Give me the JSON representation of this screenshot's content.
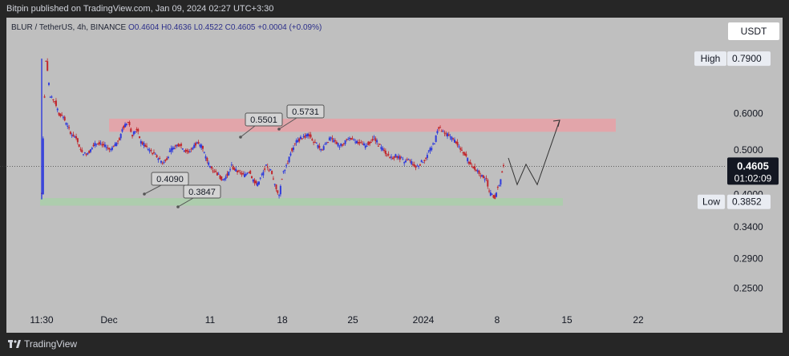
{
  "header": {
    "published": "Bitpin published on TradingView.com, Jan 09, 2024 02:27 UTC+3:30"
  },
  "legend": {
    "symbol": "BLUR / TetherUS, 4h, BINANCE",
    "open": "O0.4604",
    "high": "H0.4636",
    "low": "L0.4522",
    "close": "C0.4605",
    "change": "+0.0004 (+0.09%)"
  },
  "currency": "USDT",
  "footer": {
    "brand": "TradingView"
  },
  "colors": {
    "up": "#2f3bdc",
    "down": "#c1272d",
    "resistance": "#e8a0a6",
    "support": "#a9cfa9",
    "background": "#bfbfbf"
  },
  "chart_data": {
    "type": "candlestick",
    "symbol": "BLUR/USDT",
    "timeframe": "4h",
    "x_ticks": [
      "11:30",
      "Dec",
      "11",
      "18",
      "25",
      "2024",
      "8",
      "15",
      "22"
    ],
    "y_ticks": [
      0.25,
      0.29,
      0.34,
      0.4,
      0.5,
      0.6
    ],
    "ylim": [
      0.23,
      0.86
    ],
    "y_scale": "log",
    "current_price": {
      "value": "0.4605",
      "countdown": "01:02:09"
    },
    "high_marker": {
      "label": "High",
      "value": "0.7900"
    },
    "low_marker": {
      "label": "Low",
      "value": "0.3852"
    },
    "resistance_zone": [
      0.5501,
      0.5731
    ],
    "support_zone": [
      0.3847,
      0.409
    ],
    "callouts": [
      {
        "text": "0.5501",
        "price": 0.5501
      },
      {
        "text": "0.5731",
        "price": 0.5731
      },
      {
        "text": "0.4090",
        "price": 0.409
      },
      {
        "text": "0.3847",
        "price": 0.3847
      }
    ],
    "price_path": [
      0.4,
      0.78,
      0.65,
      0.64,
      0.6,
      0.59,
      0.56,
      0.54,
      0.53,
      0.5,
      0.49,
      0.495,
      0.51,
      0.52,
      0.515,
      0.505,
      0.5,
      0.51,
      0.53,
      0.56,
      0.575,
      0.54,
      0.555,
      0.52,
      0.51,
      0.5,
      0.49,
      0.48,
      0.47,
      0.48,
      0.5,
      0.51,
      0.515,
      0.5,
      0.495,
      0.505,
      0.52,
      0.51,
      0.48,
      0.46,
      0.45,
      0.44,
      0.43,
      0.44,
      0.46,
      0.45,
      0.445,
      0.44,
      0.45,
      0.43,
      0.42,
      0.44,
      0.46,
      0.45,
      0.42,
      0.4,
      0.45,
      0.47,
      0.5,
      0.52,
      0.53,
      0.535,
      0.54,
      0.52,
      0.51,
      0.5,
      0.52,
      0.53,
      0.52,
      0.51,
      0.515,
      0.53,
      0.525,
      0.52,
      0.515,
      0.51,
      0.52,
      0.53,
      0.515,
      0.5,
      0.49,
      0.48,
      0.485,
      0.48,
      0.47,
      0.475,
      0.465,
      0.46,
      0.47,
      0.48,
      0.5,
      0.52,
      0.56,
      0.545,
      0.54,
      0.53,
      0.52,
      0.5,
      0.49,
      0.47,
      0.46,
      0.45,
      0.44,
      0.43,
      0.4,
      0.395,
      0.42,
      0.46
    ],
    "projection": [
      0.48,
      0.42,
      0.465,
      0.42,
      0.58
    ]
  }
}
